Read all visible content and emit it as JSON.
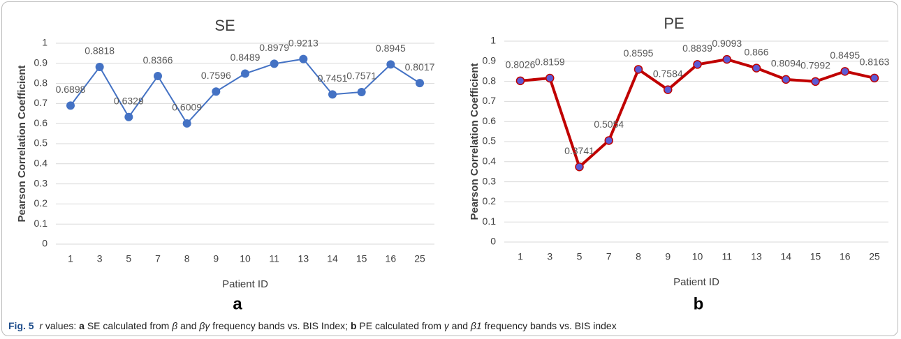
{
  "chart_data": [
    {
      "type": "line",
      "title": "SE",
      "x_label": "Patient ID",
      "y_label": "Pearson Correlation Coefficient",
      "panel": "a",
      "categories": [
        "1",
        "3",
        "5",
        "7",
        "8",
        "9",
        "10",
        "11",
        "13",
        "14",
        "15",
        "16",
        "25"
      ],
      "series": [
        {
          "name": "SE",
          "color": "#4472c4",
          "marker_color": "#4472c4",
          "values": [
            0.6898,
            0.8818,
            0.6329,
            0.8366,
            0.6009,
            0.7596,
            0.8489,
            0.8979,
            0.9213,
            0.7451,
            0.7571,
            0.8945,
            0.8017
          ]
        }
      ],
      "ylim": [
        0,
        1
      ],
      "yticks": [
        0,
        0.1,
        0.2,
        0.3,
        0.4,
        0.5,
        0.6,
        0.7,
        0.8,
        0.9,
        1
      ],
      "grid": true
    },
    {
      "type": "line",
      "title": "PE",
      "x_label": "Patient ID",
      "y_label": "Pearson Correlation Coefficient",
      "panel": "b",
      "categories": [
        "1",
        "3",
        "5",
        "7",
        "8",
        "9",
        "10",
        "11",
        "13",
        "14",
        "15",
        "16",
        "25"
      ],
      "series": [
        {
          "name": "PE",
          "color": "#c00000",
          "marker_color": "#5b5bd6",
          "values": [
            0.8026,
            0.8159,
            0.3741,
            0.5054,
            0.8595,
            0.7584,
            0.8839,
            0.9093,
            0.866,
            0.8094,
            0.7992,
            0.8495,
            0.8163
          ]
        }
      ],
      "ylim": [
        0,
        1
      ],
      "yticks": [
        0,
        0.1,
        0.2,
        0.3,
        0.4,
        0.5,
        0.6,
        0.7,
        0.8,
        0.9,
        1
      ],
      "grid": true
    }
  ],
  "caption": {
    "parts": [
      "Fig. 5",
      "r",
      " values: ",
      "a",
      " SE calculated from ",
      "β",
      " and ",
      "βγ",
      " frequency bands vs. BIS Index; ",
      "b",
      " PE calculated from ",
      "γ",
      " and ",
      "β1",
      " frequency bands vs. BIS index"
    ]
  }
}
